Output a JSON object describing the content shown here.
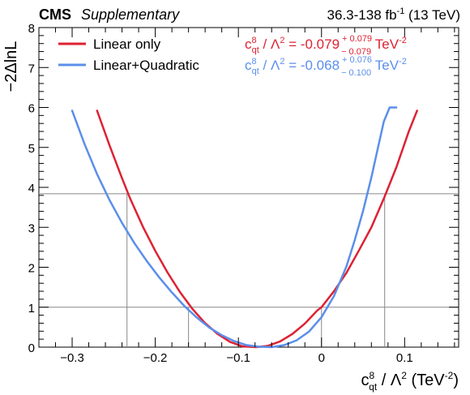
{
  "header": {
    "experiment": "CMS",
    "tag": "Supplementary",
    "lumi_prefix": "36.3-138 fb",
    "lumi_exp": "-1",
    "lumi_suffix": " (13 TeV)"
  },
  "colors": {
    "linear": "#dd2233",
    "quadratic": "#5b8fea",
    "reference": "#888888",
    "axis": "#000000"
  },
  "legend": {
    "linear_label": "Linear only",
    "quadratic_label": "Linear+Quadratic"
  },
  "results": {
    "linear": {
      "c_base": "c",
      "c_sup": "8",
      "c_sub": "qt",
      "lambda_text": " / Λ",
      "lambda_sup": "2",
      "eq": " = -0.079",
      "err_up": "+ 0.079",
      "err_down": "− 0.079",
      "unit": " TeV",
      "unit_sup": "-2"
    },
    "quadratic": {
      "c_base": "c",
      "c_sup": "8",
      "c_sub": "qt",
      "lambda_text": " / Λ",
      "lambda_sup": "2",
      "eq": " = -0.068",
      "err_up": "+ 0.076",
      "err_down": "− 0.100",
      "unit": " TeV",
      "unit_sup": "-2"
    }
  },
  "axes": {
    "ylabel": "−2ΔlnL",
    "xlabel": {
      "c_base": "c",
      "c_sup": "8",
      "c_sub": "qt",
      "lambda_text": " / Λ",
      "lambda_sup": "2",
      "unit_open": " (TeV",
      "unit_sup": "-2",
      "unit_close": ")"
    }
  },
  "chart_data": {
    "type": "line",
    "xlim": [
      -0.34,
      0.165
    ],
    "ylim": [
      0,
      8
    ],
    "x_ticks": [
      -0.3,
      -0.2,
      -0.1,
      0,
      0.1
    ],
    "x_tick_labels": [
      "−0.3",
      "−0.2",
      "−0.1",
      "0",
      "0.1"
    ],
    "y_ticks": [
      0,
      1,
      2,
      3,
      4,
      5,
      6,
      7,
      8
    ],
    "y_tick_labels": [
      "0",
      "1",
      "2",
      "3",
      "4",
      "5",
      "6",
      "7",
      "8"
    ],
    "grid": false,
    "legend_position": "top-left",
    "reference_levels": [
      1,
      3.84
    ],
    "series": [
      {
        "name": "Linear only",
        "x": [
          -0.27,
          -0.255,
          -0.24,
          -0.23,
          -0.215,
          -0.2,
          -0.185,
          -0.17,
          -0.155,
          -0.14,
          -0.125,
          -0.11,
          -0.095,
          -0.079,
          -0.065,
          -0.05,
          -0.035,
          -0.02,
          -0.005,
          0.0,
          0.015,
          0.03,
          0.045,
          0.06,
          0.075,
          0.09,
          0.105,
          0.115
        ],
        "y": [
          5.92,
          5.05,
          4.23,
          3.71,
          3.02,
          2.41,
          1.86,
          1.37,
          0.95,
          0.6,
          0.33,
          0.13,
          0.02,
          0.0,
          0.03,
          0.14,
          0.33,
          0.59,
          0.92,
          1.0,
          1.4,
          1.86,
          2.42,
          3.0,
          3.72,
          4.5,
          5.4,
          5.92
        ]
      },
      {
        "name": "Linear+Quadratic",
        "x": [
          -0.3,
          -0.285,
          -0.27,
          -0.255,
          -0.24,
          -0.225,
          -0.21,
          -0.195,
          -0.18,
          -0.165,
          -0.15,
          -0.135,
          -0.12,
          -0.105,
          -0.09,
          -0.075,
          -0.06,
          -0.045,
          -0.03,
          -0.015,
          0.0,
          0.015,
          0.03,
          0.04,
          0.05,
          0.06,
          0.068,
          0.075,
          0.082,
          0.09
        ],
        "y": [
          5.92,
          5.08,
          4.33,
          3.68,
          3.11,
          2.6,
          2.15,
          1.74,
          1.37,
          1.03,
          0.74,
          0.49,
          0.3,
          0.15,
          0.05,
          0.01,
          0.0,
          0.05,
          0.17,
          0.39,
          0.75,
          1.28,
          2.02,
          2.68,
          3.41,
          4.25,
          5.0,
          5.65,
          6.0,
          6.0
        ]
      }
    ],
    "interval_lines": [
      {
        "x": -0.234,
        "y_top": 3.84
      },
      {
        "x": -0.16,
        "y_top": 1.0
      },
      {
        "x": 0.0,
        "y_top": 1.0
      },
      {
        "x": 0.076,
        "y_top": 3.84
      }
    ]
  }
}
